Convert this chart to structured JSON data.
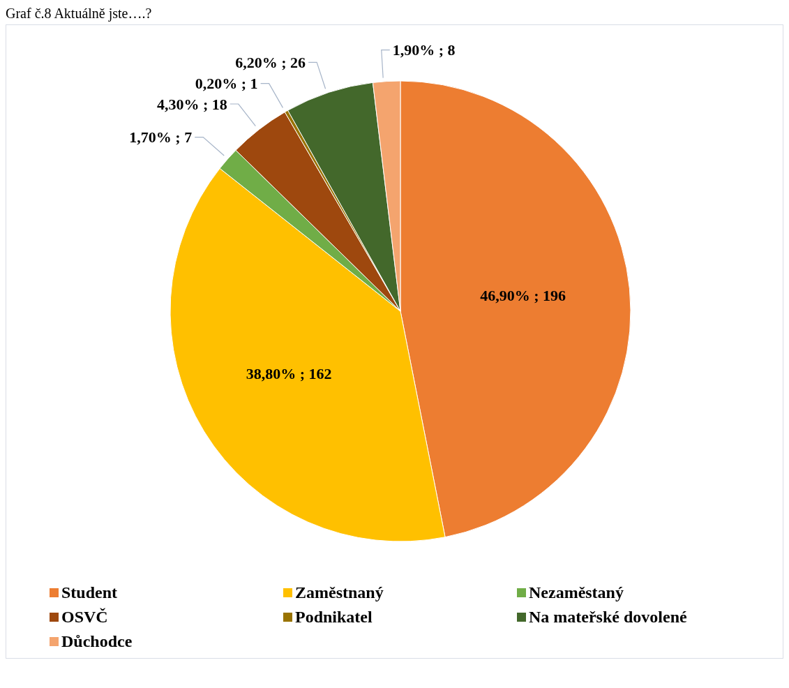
{
  "chart_data": {
    "type": "pie",
    "title": "Graf č.8 Aktuálně jste….?",
    "categories": [
      "Student",
      "Zaměstnaný",
      "Nezaměstaný",
      "OSVČ",
      "Podnikatel",
      "Na mateřské dovolené",
      "Důchodce"
    ],
    "values": [
      196,
      162,
      7,
      18,
      1,
      26,
      8
    ],
    "value_labels": [
      "46,90% ; 196",
      "38,80% ; 162",
      "1,70% ; 7",
      "4,30% ; 18",
      "0,20% ; 1",
      "6,20% ; 26",
      "1,90% ; 8"
    ],
    "colors": [
      "#ed7d31",
      "#ffc000",
      "#70ad47",
      "#9e480e",
      "#997300",
      "#43682b",
      "#f4a46e"
    ],
    "legend": "bottom"
  }
}
